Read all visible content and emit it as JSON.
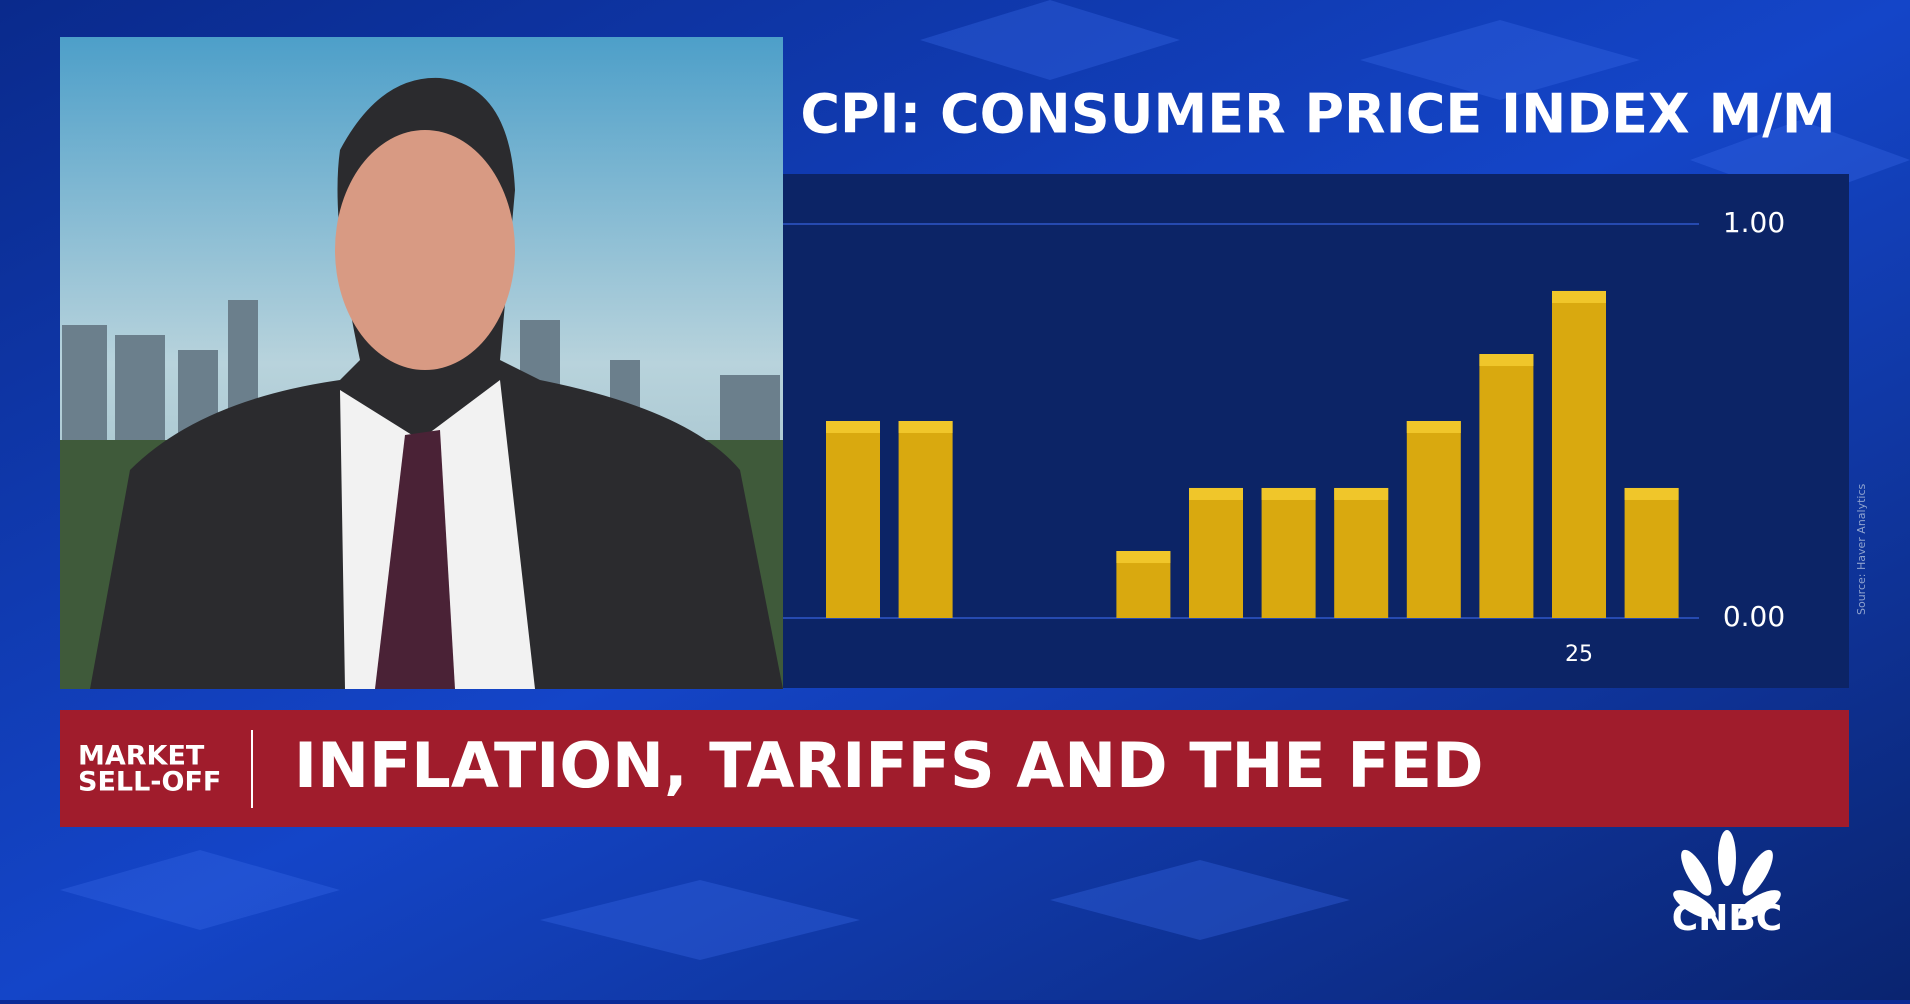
{
  "chart_data": {
    "type": "bar",
    "title": "CPI: CONSUMER PRICE INDEX M/M",
    "categories": [
      null,
      null,
      null,
      null,
      null,
      null,
      null,
      null,
      null,
      null,
      "25",
      null
    ],
    "values": [
      0.5,
      0.5,
      0,
      0,
      0.17,
      0.33,
      0.33,
      0.33,
      0.5,
      0.67,
      0.83,
      0.33
    ],
    "color": "#d9a90f",
    "ylim": [
      0,
      1
    ],
    "yticks": [
      {
        "value": 0,
        "label": "0.00"
      },
      {
        "value": 1,
        "label": "1.00"
      }
    ],
    "grid": true,
    "source": "Source: Haver Analytics"
  },
  "banner": {
    "tag": [
      "MARKET",
      "SELL-OFF"
    ],
    "headline": "INFLATION, TARIFFS AND THE FED"
  },
  "logo": "CNBC"
}
